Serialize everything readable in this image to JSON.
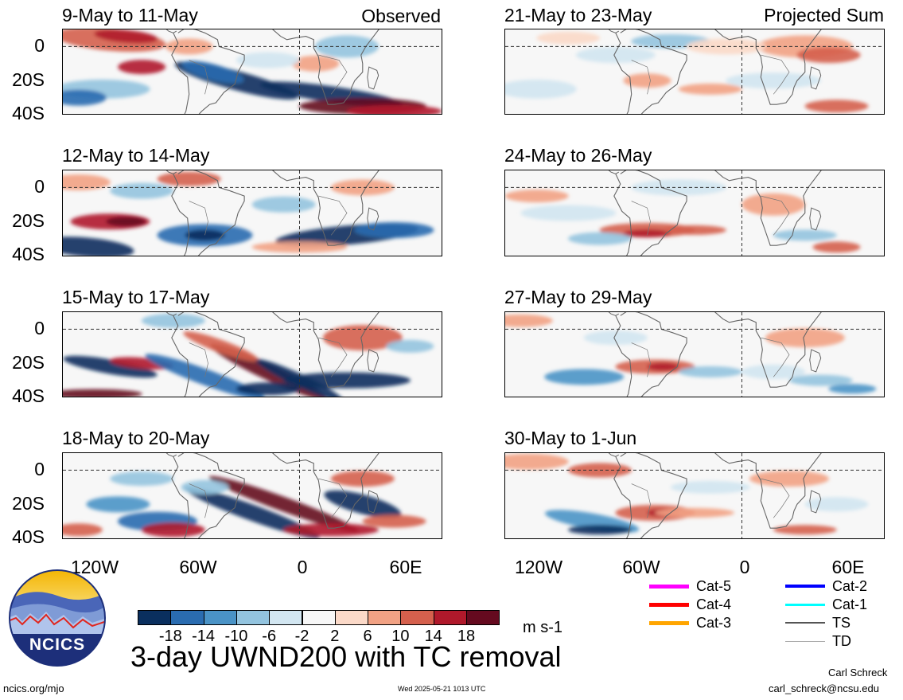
{
  "panels": {
    "left": [
      {
        "title": "9-May to 11-May",
        "tag": "Observed"
      },
      {
        "title": "12-May to 14-May",
        "tag": ""
      },
      {
        "title": "15-May to 17-May",
        "tag": ""
      },
      {
        "title": "18-May to 20-May",
        "tag": ""
      }
    ],
    "right": [
      {
        "title": "21-May to 23-May",
        "tag": "Projected Sum"
      },
      {
        "title": "24-May to 26-May",
        "tag": ""
      },
      {
        "title": "27-May to 29-May",
        "tag": ""
      },
      {
        "title": "30-May to 1-Jun",
        "tag": ""
      }
    ]
  },
  "axes": {
    "y_ticks": [
      "0",
      "20S",
      "40S"
    ],
    "x_ticks": [
      "120W",
      "60W",
      "0",
      "60E"
    ]
  },
  "colorbar": {
    "colors": [
      "#0a2f5e",
      "#2a6cb0",
      "#4a93c6",
      "#93c4df",
      "#d2e6f1",
      "#f7f7f7",
      "#fbd9c8",
      "#f2a284",
      "#d5604d",
      "#b0192b",
      "#650a1f"
    ],
    "ticks": [
      "-18",
      "-14",
      "-10",
      "-6",
      "-2",
      "2",
      "6",
      "10",
      "14",
      "18"
    ],
    "units": "m s-1"
  },
  "title": "3-day UWND200 with TC removal",
  "logo_text": "NCICS",
  "legend": [
    {
      "label": "Cat-5",
      "color": "#ff00ff",
      "width": 5
    },
    {
      "label": "Cat-4",
      "color": "#ff0000",
      "width": 5
    },
    {
      "label": "Cat-3",
      "color": "#ffa500",
      "width": 5
    },
    {
      "label": "Cat-2",
      "color": "#0000ff",
      "width": 4
    },
    {
      "label": "Cat-1",
      "color": "#00ffff",
      "width": 3
    },
    {
      "label": "TS",
      "color": "#555555",
      "width": 2
    },
    {
      "label": "TD",
      "color": "#aaaaaa",
      "width": 1
    }
  ],
  "footer": {
    "left": "ncics.org/mjo",
    "center": "Wed 2025-05-21 1013 UTC",
    "author": "Carl Schreck",
    "email": "carl_schreck@ncsu.edu"
  }
}
